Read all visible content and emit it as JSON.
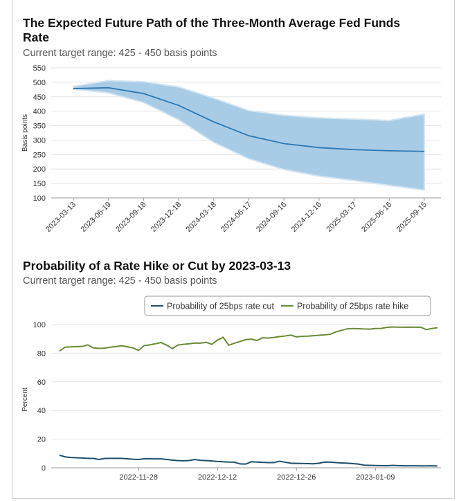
{
  "chart_data": [
    {
      "type": "area",
      "title": "The Expected Future Path of the Three-Month Average Fed Funds Rate",
      "subtitle": "Current target range: 425 - 450 basis points",
      "ylabel": "Basis points",
      "xlabel": "",
      "ylim": [
        100,
        550
      ],
      "yticks": [
        100,
        150,
        200,
        250,
        300,
        350,
        400,
        450,
        500,
        550
      ],
      "categories": [
        "2023-03-13",
        "2023-06-19",
        "2023-09-18",
        "2023-12-18",
        "2024-03-18",
        "2024-06-17",
        "2024-09-16",
        "2024-12-16",
        "2025-03-17",
        "2025-06-16",
        "2025-09-15"
      ],
      "series": [
        {
          "role": "mean",
          "values": [
            478,
            481,
            461,
            420,
            363,
            315,
            288,
            274,
            267,
            263,
            261
          ]
        },
        {
          "role": "upper",
          "values": [
            486,
            506,
            502,
            484,
            445,
            402,
            386,
            377,
            373,
            368,
            390
          ]
        },
        {
          "role": "lower",
          "values": [
            476,
            463,
            430,
            370,
            292,
            235,
            198,
            175,
            160,
            143,
            127
          ]
        }
      ],
      "colors": {
        "line": "#2a78b4",
        "band": "#a9cce6",
        "band_edge": "#d6e6f2"
      },
      "grid": true
    },
    {
      "type": "line",
      "title": "Probability of a Rate Hike or Cut by 2023-03-13",
      "subtitle": "Current target range: 425 - 450 basis points",
      "ylabel": "Percent",
      "xlabel": "",
      "ylim": [
        0,
        100
      ],
      "yticks": [
        0,
        20,
        40,
        60,
        80,
        100
      ],
      "x_start": "2022-11-14",
      "x_end": "2023-01-20",
      "xticks": [
        "2022-11-28",
        "2022-12-12",
        "2022-12-26",
        "2023-01-09"
      ],
      "legend_position": "top-right",
      "grid": true,
      "series": [
        {
          "name": "Probability of 25bps rate cut",
          "color": "#1f4e6b",
          "points": [
            [
              "2022-11-14",
              8.8
            ],
            [
              "2022-11-15",
              7.6
            ],
            [
              "2022-11-16",
              7.2
            ],
            [
              "2022-11-17",
              7
            ],
            [
              "2022-11-18",
              6.8
            ],
            [
              "2022-11-19",
              6.6
            ],
            [
              "2022-11-20",
              6.5
            ],
            [
              "2022-11-21",
              5.8
            ],
            [
              "2022-11-22",
              6.5
            ],
            [
              "2022-11-23",
              6.6
            ],
            [
              "2022-11-24",
              6.6
            ],
            [
              "2022-11-25",
              6.6
            ],
            [
              "2022-11-26",
              6.3
            ],
            [
              "2022-11-27",
              6
            ],
            [
              "2022-11-28",
              5.8
            ],
            [
              "2022-11-29",
              6.3
            ],
            [
              "2022-11-30",
              6.3
            ],
            [
              "2022-12-01",
              6.2
            ],
            [
              "2022-12-02",
              6.2
            ],
            [
              "2022-12-03",
              5.8
            ],
            [
              "2022-12-04",
              5.4
            ],
            [
              "2022-12-05",
              5
            ],
            [
              "2022-12-06",
              4.9
            ],
            [
              "2022-12-07",
              5.1
            ],
            [
              "2022-12-08",
              5.8
            ],
            [
              "2022-12-09",
              5.2
            ],
            [
              "2022-12-10",
              5
            ],
            [
              "2022-12-11",
              4.8
            ],
            [
              "2022-12-12",
              4.4
            ],
            [
              "2022-12-13",
              4.2
            ],
            [
              "2022-12-14",
              4
            ],
            [
              "2022-12-15",
              3.9
            ],
            [
              "2022-12-16",
              2.7
            ],
            [
              "2022-12-17",
              2.6
            ],
            [
              "2022-12-18",
              4.2
            ],
            [
              "2022-12-19",
              4
            ],
            [
              "2022-12-20",
              3.8
            ],
            [
              "2022-12-21",
              3.6
            ],
            [
              "2022-12-22",
              3.6
            ],
            [
              "2022-12-23",
              4.6
            ],
            [
              "2022-12-24",
              3.9
            ],
            [
              "2022-12-25",
              3.2
            ],
            [
              "2022-12-26",
              3.1
            ],
            [
              "2022-12-27",
              3
            ],
            [
              "2022-12-28",
              2.9
            ],
            [
              "2022-12-29",
              2.8
            ],
            [
              "2022-12-30",
              3.2
            ],
            [
              "2022-12-31",
              4
            ],
            [
              "2023-01-01",
              3.9
            ],
            [
              "2023-01-02",
              3.6
            ],
            [
              "2023-01-03",
              3.4
            ],
            [
              "2023-01-04",
              3.2
            ],
            [
              "2023-01-05",
              2.9
            ],
            [
              "2023-01-06",
              2.6
            ],
            [
              "2023-01-07",
              1.8
            ],
            [
              "2023-01-08",
              1.7
            ],
            [
              "2023-01-09",
              1.6
            ],
            [
              "2023-01-10",
              1.5
            ],
            [
              "2023-01-11",
              1.4
            ],
            [
              "2023-01-12",
              1.7
            ],
            [
              "2023-01-13",
              1.5
            ],
            [
              "2023-01-14",
              1.4
            ],
            [
              "2023-01-15",
              1.4
            ],
            [
              "2023-01-16",
              1.4
            ],
            [
              "2023-01-17",
              1.3
            ],
            [
              "2023-01-18",
              1.3
            ],
            [
              "2023-01-19",
              1.4
            ],
            [
              "2023-01-20",
              1.2
            ]
          ]
        },
        {
          "name": "Probability of 25bps rate hike",
          "color": "#6a8a36",
          "points": [
            [
              "2022-11-14",
              81.5
            ],
            [
              "2022-11-15",
              84.2
            ],
            [
              "2022-11-16",
              84.4
            ],
            [
              "2022-11-17",
              84.6
            ],
            [
              "2022-11-18",
              84.7
            ],
            [
              "2022-11-19",
              85.8
            ],
            [
              "2022-11-20",
              83.7
            ],
            [
              "2022-11-21",
              83.4
            ],
            [
              "2022-11-22",
              83.5
            ],
            [
              "2022-11-23",
              84.2
            ],
            [
              "2022-11-24",
              84.6
            ],
            [
              "2022-11-25",
              85.2
            ],
            [
              "2022-11-26",
              84.5
            ],
            [
              "2022-11-27",
              83.7
            ],
            [
              "2022-11-28",
              81.9
            ],
            [
              "2022-11-29",
              85.3
            ],
            [
              "2022-11-30",
              85.8
            ],
            [
              "2022-12-01",
              86.6
            ],
            [
              "2022-12-02",
              87.4
            ],
            [
              "2022-12-03",
              85.6
            ],
            [
              "2022-12-04",
              83.2
            ],
            [
              "2022-12-05",
              85.7
            ],
            [
              "2022-12-06",
              86.2
            ],
            [
              "2022-12-07",
              86.6
            ],
            [
              "2022-12-08",
              87.1
            ],
            [
              "2022-12-09",
              87
            ],
            [
              "2022-12-10",
              87.6
            ],
            [
              "2022-12-11",
              86.2
            ],
            [
              "2022-12-12",
              89.2
            ],
            [
              "2022-12-13",
              91.1
            ],
            [
              "2022-12-14",
              85.6
            ],
            [
              "2022-12-15",
              87
            ],
            [
              "2022-12-16",
              88.2
            ],
            [
              "2022-12-17",
              89.5
            ],
            [
              "2022-12-18",
              89.8
            ],
            [
              "2022-12-19",
              88.9
            ],
            [
              "2022-12-20",
              90.8
            ],
            [
              "2022-12-21",
              90.5
            ],
            [
              "2022-12-22",
              91
            ],
            [
              "2022-12-23",
              91.6
            ],
            [
              "2022-12-24",
              92
            ],
            [
              "2022-12-25",
              92.6
            ],
            [
              "2022-12-26",
              91.4
            ],
            [
              "2022-12-27",
              91.8
            ],
            [
              "2022-12-28",
              91.9
            ],
            [
              "2022-12-29",
              92.2
            ],
            [
              "2022-12-30",
              92.5
            ],
            [
              "2022-12-31",
              92.8
            ],
            [
              "2023-01-01",
              93.2
            ],
            [
              "2023-01-02",
              94.9
            ],
            [
              "2023-01-03",
              96
            ],
            [
              "2023-01-04",
              97
            ],
            [
              "2023-01-05",
              97.2
            ],
            [
              "2023-01-06",
              97.1
            ],
            [
              "2023-01-07",
              96.9
            ],
            [
              "2023-01-08",
              96.8
            ],
            [
              "2023-01-09",
              97.2
            ],
            [
              "2023-01-10",
              97.3
            ],
            [
              "2023-01-11",
              98
            ],
            [
              "2023-01-12",
              98.3
            ],
            [
              "2023-01-13",
              98.2
            ],
            [
              "2023-01-14",
              98.1
            ],
            [
              "2023-01-15",
              98.2
            ],
            [
              "2023-01-16",
              98.1
            ],
            [
              "2023-01-17",
              98.2
            ],
            [
              "2023-01-18",
              96.5
            ],
            [
              "2023-01-19",
              97.2
            ],
            [
              "2023-01-20",
              97.8
            ]
          ]
        }
      ]
    }
  ]
}
